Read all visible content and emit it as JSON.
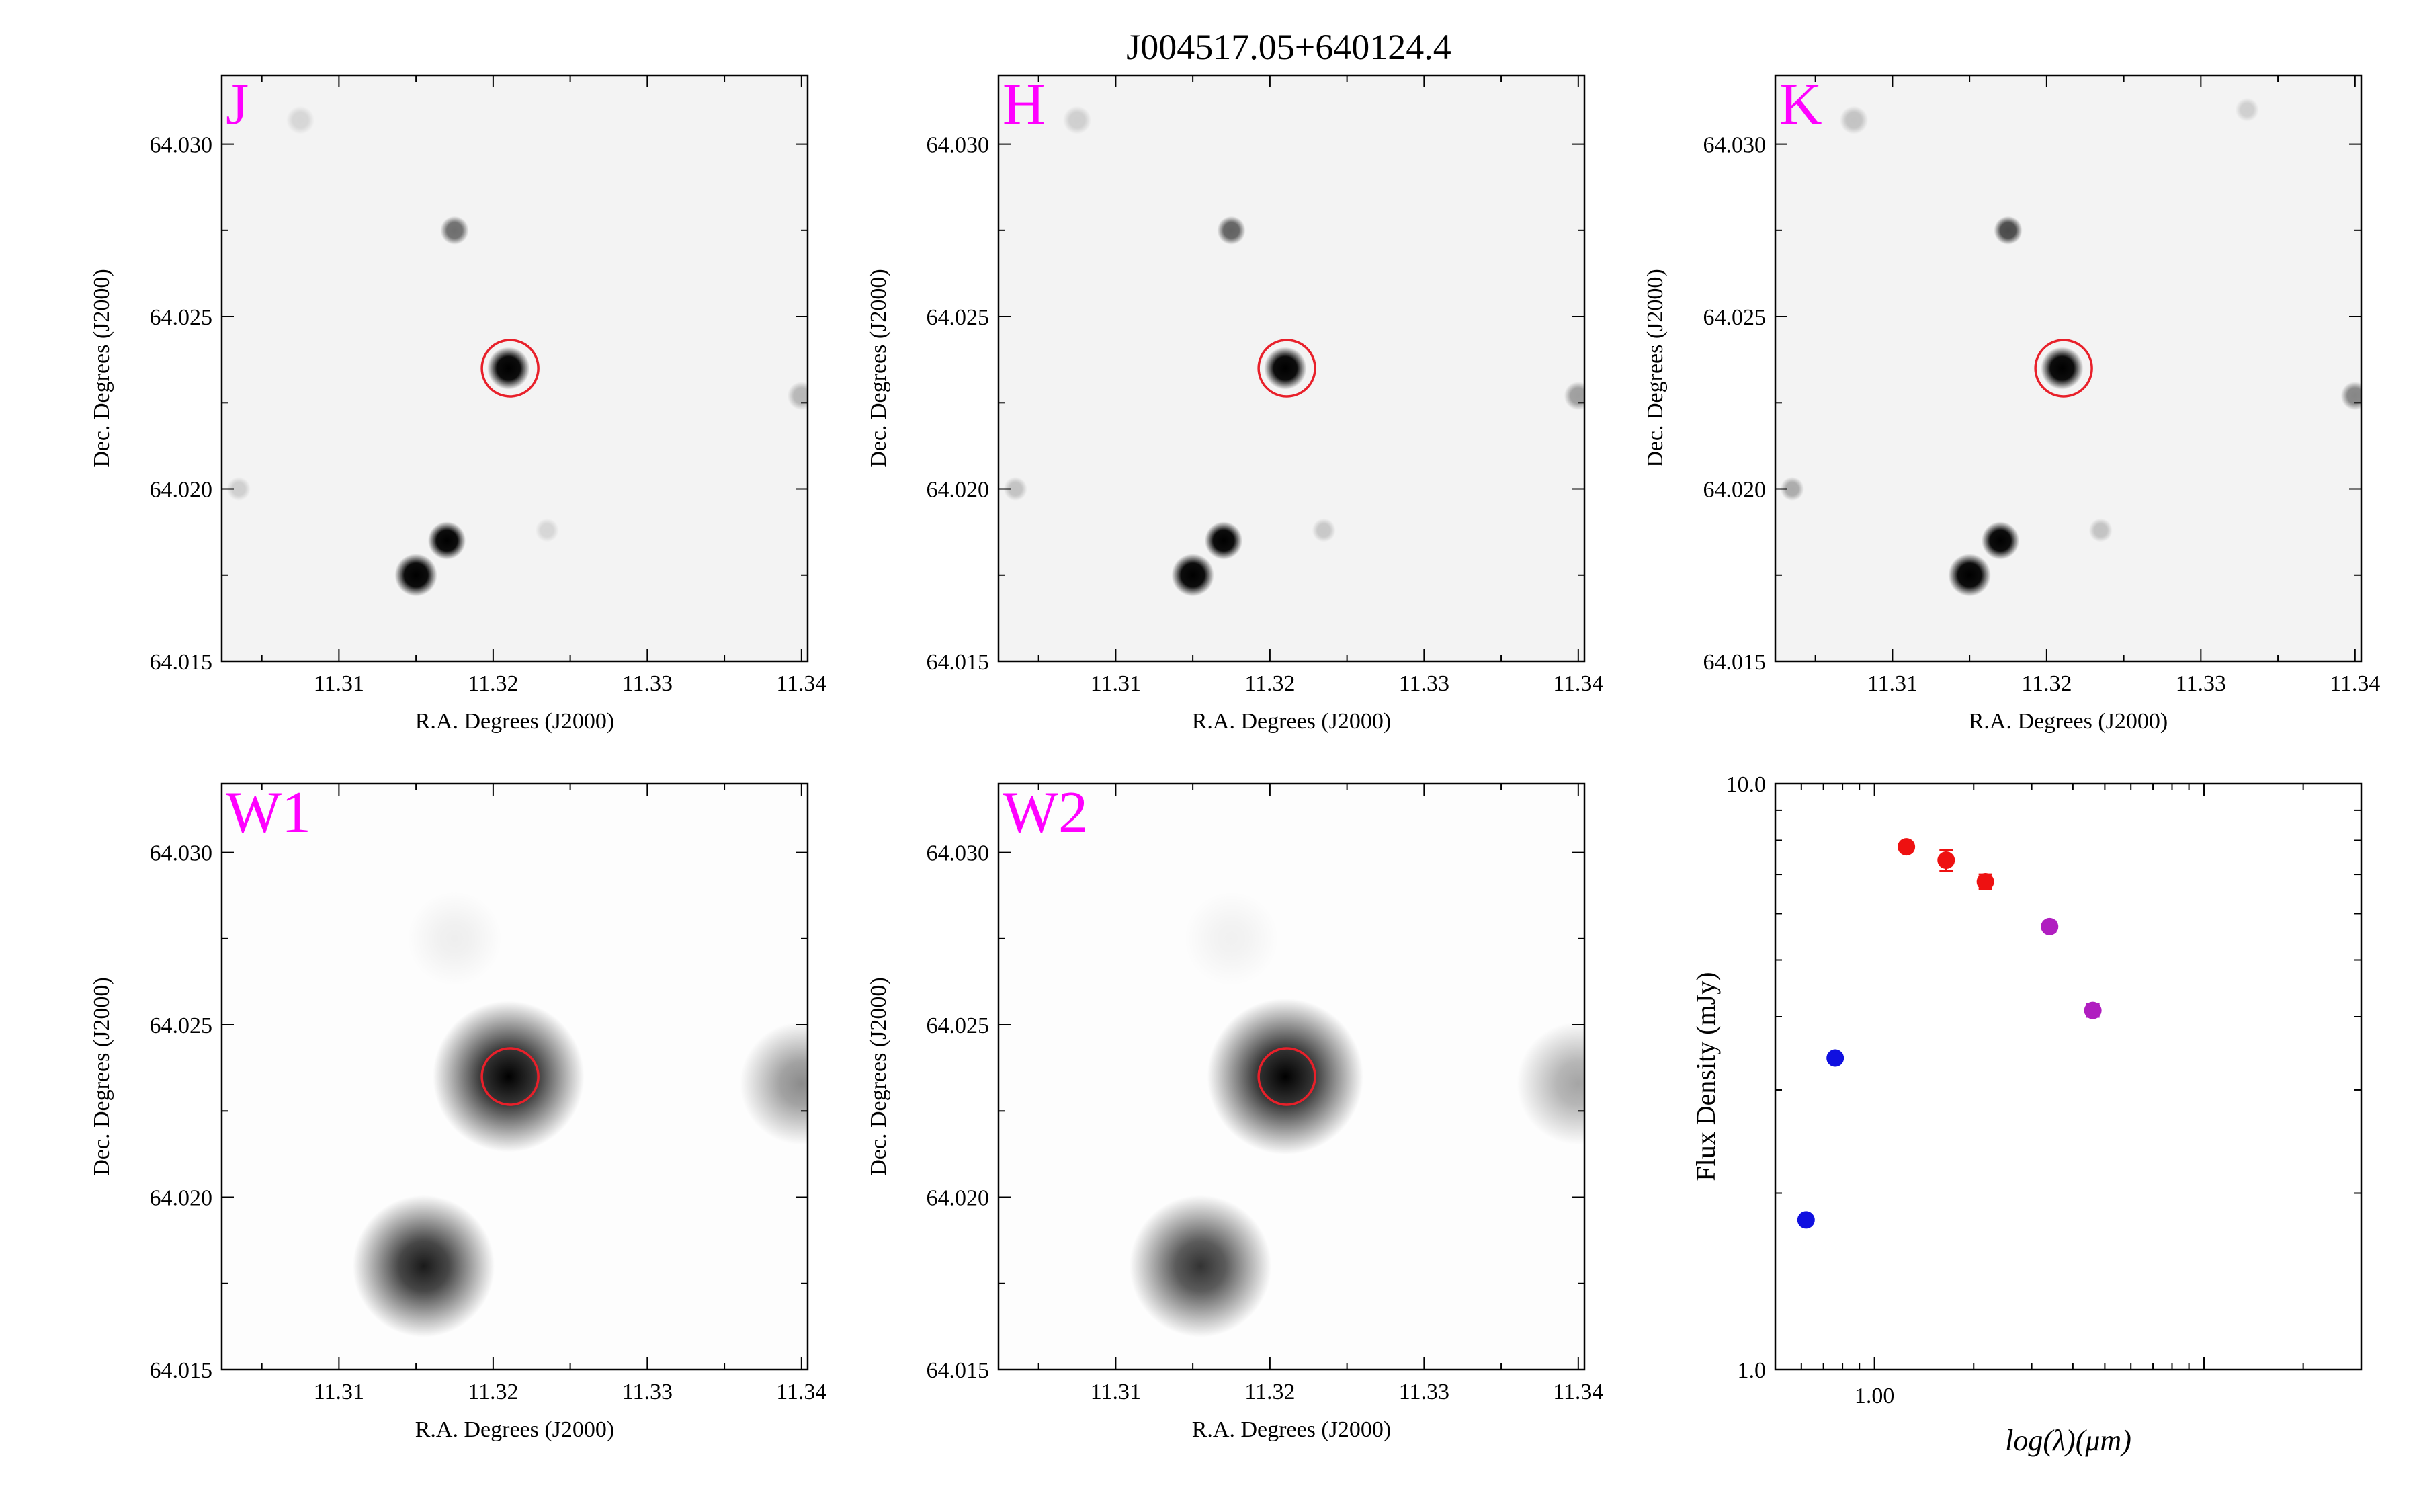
{
  "title": "J004517.05+640124.4",
  "image_panels": [
    {
      "band": "J",
      "xlabel": "R.A. Degrees (J2000)",
      "ylabel": "Dec. Degrees (J2000)",
      "xticks": [
        "11.31",
        "11.32",
        "11.33",
        "11.34"
      ],
      "yticks": [
        "64.015",
        "64.020",
        "64.025",
        "64.030"
      ],
      "sources": [
        {
          "ra": 11.321,
          "dec": 64.0235,
          "size": 0.9,
          "strength": 1.0
        },
        {
          "ra": 11.3175,
          "dec": 64.0275,
          "size": 0.6,
          "strength": 0.55
        },
        {
          "ra": 11.315,
          "dec": 64.0175,
          "size": 0.9,
          "strength": 1.0
        },
        {
          "ra": 11.317,
          "dec": 64.0185,
          "size": 0.8,
          "strength": 1.0
        },
        {
          "ra": 11.3075,
          "dec": 64.0307,
          "size": 0.6,
          "strength": 0.12
        },
        {
          "ra": 11.3235,
          "dec": 64.0188,
          "size": 0.5,
          "strength": 0.12
        },
        {
          "ra": 11.3035,
          "dec": 64.02,
          "size": 0.5,
          "strength": 0.15
        },
        {
          "ra": 11.34,
          "dec": 64.0227,
          "size": 0.6,
          "strength": 0.25
        }
      ]
    },
    {
      "band": "H",
      "xlabel": "R.A. Degrees (J2000)",
      "ylabel": "Dec. Degrees (J2000)",
      "xticks": [
        "11.31",
        "11.32",
        "11.33",
        "11.34"
      ],
      "yticks": [
        "64.015",
        "64.020",
        "64.025",
        "64.030"
      ],
      "sources": [
        {
          "ra": 11.321,
          "dec": 64.0235,
          "size": 0.9,
          "strength": 1.0
        },
        {
          "ra": 11.3175,
          "dec": 64.0275,
          "size": 0.6,
          "strength": 0.6
        },
        {
          "ra": 11.315,
          "dec": 64.0175,
          "size": 0.9,
          "strength": 1.0
        },
        {
          "ra": 11.317,
          "dec": 64.0185,
          "size": 0.8,
          "strength": 1.0
        },
        {
          "ra": 11.3075,
          "dec": 64.0307,
          "size": 0.6,
          "strength": 0.15
        },
        {
          "ra": 11.3235,
          "dec": 64.0188,
          "size": 0.5,
          "strength": 0.18
        },
        {
          "ra": 11.3035,
          "dec": 64.02,
          "size": 0.5,
          "strength": 0.2
        },
        {
          "ra": 11.34,
          "dec": 64.0227,
          "size": 0.6,
          "strength": 0.35
        }
      ]
    },
    {
      "band": "K",
      "xlabel": "R.A. Degrees (J2000)",
      "ylabel": "Dec. Degrees (J2000)",
      "xticks": [
        "11.31",
        "11.32",
        "11.33",
        "11.34"
      ],
      "yticks": [
        "64.015",
        "64.020",
        "64.025",
        "64.030"
      ],
      "sources": [
        {
          "ra": 11.321,
          "dec": 64.0235,
          "size": 0.9,
          "strength": 1.0
        },
        {
          "ra": 11.3175,
          "dec": 64.0275,
          "size": 0.6,
          "strength": 0.7
        },
        {
          "ra": 11.315,
          "dec": 64.0175,
          "size": 0.9,
          "strength": 1.0
        },
        {
          "ra": 11.317,
          "dec": 64.0185,
          "size": 0.8,
          "strength": 1.0
        },
        {
          "ra": 11.3075,
          "dec": 64.0307,
          "size": 0.6,
          "strength": 0.2
        },
        {
          "ra": 11.3235,
          "dec": 64.0188,
          "size": 0.5,
          "strength": 0.2
        },
        {
          "ra": 11.3035,
          "dec": 64.02,
          "size": 0.5,
          "strength": 0.3
        },
        {
          "ra": 11.333,
          "dec": 64.031,
          "size": 0.5,
          "strength": 0.15
        },
        {
          "ra": 11.34,
          "dec": 64.0227,
          "size": 0.6,
          "strength": 0.45
        }
      ]
    },
    {
      "band": "W1",
      "xlabel": "R.A. Degrees (J2000)",
      "ylabel": "Dec. Degrees (J2000)",
      "xticks": [
        "11.31",
        "11.32",
        "11.33",
        "11.34"
      ],
      "yticks": [
        "64.015",
        "64.020",
        "64.025",
        "64.030"
      ],
      "sources": [
        {
          "ra": 11.321,
          "dec": 64.0235,
          "size": 3.2,
          "strength": 1.0
        },
        {
          "ra": 11.3155,
          "dec": 64.018,
          "size": 3.0,
          "strength": 0.9
        },
        {
          "ra": 11.34,
          "dec": 64.0233,
          "size": 2.6,
          "strength": 0.45
        },
        {
          "ra": 11.3175,
          "dec": 64.0275,
          "size": 2.0,
          "strength": 0.06
        }
      ]
    },
    {
      "band": "W2",
      "xlabel": "R.A. Degrees (J2000)",
      "ylabel": "Dec. Degrees (J2000)",
      "xticks": [
        "11.31",
        "11.32",
        "11.33",
        "11.34"
      ],
      "yticks": [
        "64.015",
        "64.020",
        "64.025",
        "64.030"
      ],
      "sources": [
        {
          "ra": 11.321,
          "dec": 64.0235,
          "size": 3.3,
          "strength": 1.0
        },
        {
          "ra": 11.3155,
          "dec": 64.018,
          "size": 3.0,
          "strength": 0.8
        },
        {
          "ra": 11.34,
          "dec": 64.0233,
          "size": 2.6,
          "strength": 0.35
        },
        {
          "ra": 11.3175,
          "dec": 64.0275,
          "size": 2.0,
          "strength": 0.05
        }
      ]
    }
  ],
  "target": {
    "ra": 11.3211,
    "dec": 64.0235,
    "marker_color": "#e8202a"
  },
  "band_label_color": "#ff00ff",
  "chart_data": {
    "type": "scatter",
    "title": "",
    "xlabel": "log(λ)(μm)",
    "ylabel": "Flux Density (mJy)",
    "xscale": "log",
    "yscale": "log",
    "xlim": [
      0.5,
      30
    ],
    "ylim": [
      1.0,
      10.0
    ],
    "xticks": [
      "1.00"
    ],
    "yticks": [
      "1.0",
      "10.0"
    ],
    "grid": false,
    "legend": "none",
    "points": [
      {
        "x": 0.62,
        "y": 1.8,
        "yerr": 0.03,
        "color": "#1010e0"
      },
      {
        "x": 0.76,
        "y": 3.4,
        "yerr": 0.05,
        "color": "#1010e0"
      },
      {
        "x": 1.25,
        "y": 7.8,
        "yerr": 0.15,
        "color": "#ee1111"
      },
      {
        "x": 1.65,
        "y": 7.4,
        "yerr": 0.3,
        "color": "#ee1111"
      },
      {
        "x": 2.17,
        "y": 6.8,
        "yerr": 0.2,
        "color": "#ee1111"
      },
      {
        "x": 3.4,
        "y": 5.7,
        "yerr": 0.12,
        "color": "#b01ec0"
      },
      {
        "x": 4.6,
        "y": 4.1,
        "yerr": 0.1,
        "color": "#b01ec0"
      }
    ]
  }
}
